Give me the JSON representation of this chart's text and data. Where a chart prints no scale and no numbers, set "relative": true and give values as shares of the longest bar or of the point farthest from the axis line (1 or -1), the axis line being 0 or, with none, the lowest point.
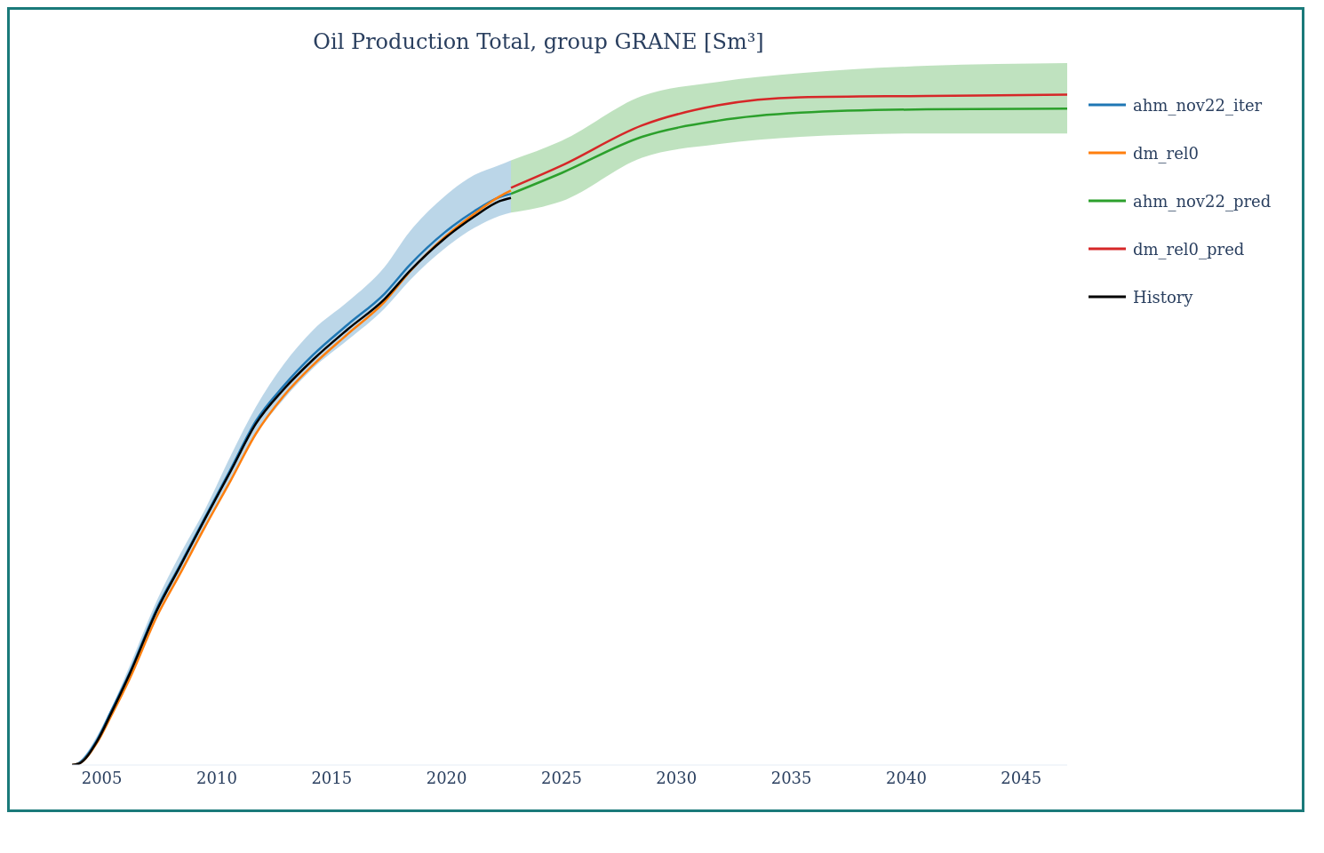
{
  "chart_data": {
    "type": "line",
    "title": "Oil Production Total, group GRANE [Sm³]",
    "relative": true,
    "legend": "right",
    "xlim": [
      2003.7,
      2047.0
    ],
    "xticks": [
      2005,
      2010,
      2015,
      2020,
      2025,
      2030,
      2035,
      2040,
      2045
    ],
    "series": [
      {
        "name": "ahm_nov22_iter",
        "color": "#1f77b4",
        "x": [
          2003.7,
          2004.0,
          2004.8,
          2005.4,
          2006.2,
          2007.4,
          2008.4,
          2009.5,
          2010.6,
          2011.7,
          2012.9,
          2014.2,
          2015.7,
          2017.3,
          2018.4,
          2019.9,
          2021.2,
          2022.3,
          2022.8
        ],
        "values": [
          0,
          0.003,
          0.038,
          0.08,
          0.137,
          0.234,
          0.298,
          0.37,
          0.441,
          0.513,
          0.565,
          0.612,
          0.657,
          0.703,
          0.746,
          0.794,
          0.826,
          0.847,
          0.852
        ],
        "lower": [
          0,
          0.001,
          0.031,
          0.071,
          0.126,
          0.22,
          0.283,
          0.356,
          0.424,
          0.492,
          0.545,
          0.592,
          0.634,
          0.681,
          0.723,
          0.77,
          0.801,
          0.819,
          0.824
        ],
        "upper": [
          0,
          0.005,
          0.044,
          0.084,
          0.147,
          0.246,
          0.314,
          0.382,
          0.461,
          0.534,
          0.597,
          0.649,
          0.691,
          0.743,
          0.796,
          0.848,
          0.88,
          0.895,
          0.902
        ]
      },
      {
        "name": "dm_rel0",
        "color": "#ff7f0e",
        "x": [
          2003.7,
          2004.0,
          2004.8,
          2005.4,
          2006.2,
          2007.4,
          2008.4,
          2009.5,
          2010.6,
          2011.7,
          2012.9,
          2014.2,
          2015.7,
          2017.3,
          2018.4,
          2019.9,
          2021.2,
          2022.3,
          2022.8
        ],
        "values": [
          0,
          0.002,
          0.034,
          0.073,
          0.128,
          0.222,
          0.285,
          0.356,
          0.424,
          0.494,
          0.55,
          0.597,
          0.643,
          0.691,
          0.736,
          0.787,
          0.822,
          0.848,
          0.857
        ]
      },
      {
        "name": "ahm_nov22_pred",
        "color": "#2ca02c",
        "x": [
          2022.8,
          2025.0,
          2028.5,
          2031.8,
          2035.4,
          2040.9,
          2047.0
        ],
        "values": [
          0.852,
          0.883,
          0.937,
          0.961,
          0.973,
          0.978,
          0.979
        ],
        "lower": [
          0.824,
          0.841,
          0.906,
          0.926,
          0.937,
          0.942,
          0.942
        ],
        "upper": [
          0.902,
          0.931,
          0.998,
          1.019,
          1.032,
          1.043,
          1.047
        ]
      },
      {
        "name": "dm_rel0_pred",
        "color": "#d62728",
        "x": [
          2022.8,
          2025.0,
          2028.5,
          2031.8,
          2035.4,
          2040.9,
          2047.0
        ],
        "values": [
          0.861,
          0.894,
          0.954,
          0.984,
          0.996,
          0.998,
          1
        ]
      },
      {
        "name": "History",
        "color": "#000000",
        "x": [
          2003.7,
          2004.0,
          2004.8,
          2005.4,
          2006.2,
          2007.4,
          2008.4,
          2009.5,
          2010.6,
          2011.7,
          2012.9,
          2014.2,
          2015.7,
          2017.3,
          2018.4,
          2019.9,
          2021.2,
          2022.3,
          2022.8
        ],
        "values": [
          0,
          0.002,
          0.036,
          0.077,
          0.135,
          0.231,
          0.296,
          0.368,
          0.438,
          0.509,
          0.56,
          0.605,
          0.65,
          0.695,
          0.737,
          0.785,
          0.818,
          0.841,
          0.846
        ]
      }
    ]
  }
}
